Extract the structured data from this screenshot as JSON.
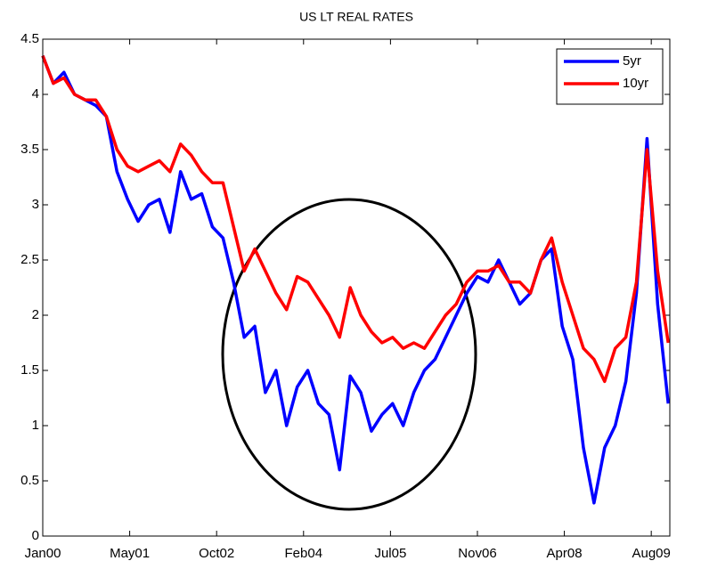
{
  "chart_data": {
    "type": "line",
    "title": "US LT REAL RATES",
    "x": [
      0,
      2,
      4,
      6,
      8,
      10,
      12,
      14,
      16,
      18,
      20,
      22,
      24,
      26,
      28,
      30,
      32,
      34,
      36,
      38,
      40,
      42,
      44,
      46,
      48,
      50,
      52,
      54,
      56,
      58,
      60,
      62,
      64,
      66,
      68,
      70,
      72,
      74,
      76,
      78,
      80,
      82,
      84,
      86,
      88,
      90,
      92,
      94,
      96,
      98,
      100,
      102,
      104,
      106,
      108,
      110,
      112,
      114,
      116,
      118
    ],
    "series": [
      {
        "name": "5yr",
        "color": "#0000ff",
        "values": [
          4.35,
          4.1,
          4.2,
          4.0,
          3.95,
          3.9,
          3.8,
          3.3,
          3.05,
          2.85,
          3.0,
          3.05,
          2.75,
          3.3,
          3.05,
          3.1,
          2.8,
          2.7,
          2.3,
          1.8,
          1.9,
          1.3,
          1.5,
          1.0,
          1.35,
          1.5,
          1.2,
          1.1,
          0.6,
          1.45,
          1.3,
          0.95,
          1.1,
          1.2,
          1.0,
          1.3,
          1.5,
          1.6,
          1.8,
          2.0,
          2.2,
          2.35,
          2.3,
          2.5,
          2.3,
          2.1,
          2.2,
          2.5,
          2.6,
          1.9,
          1.6,
          0.8,
          0.3,
          0.8,
          1.0,
          1.4,
          2.2,
          3.6,
          2.1,
          1.2
        ]
      },
      {
        "name": "10yr",
        "color": "#ff0000",
        "values": [
          4.35,
          4.1,
          4.15,
          4.0,
          3.95,
          3.95,
          3.8,
          3.5,
          3.35,
          3.3,
          3.35,
          3.4,
          3.3,
          3.55,
          3.45,
          3.3,
          3.2,
          3.2,
          2.8,
          2.4,
          2.6,
          2.4,
          2.2,
          2.05,
          2.35,
          2.3,
          2.15,
          2.0,
          1.8,
          2.25,
          2.0,
          1.85,
          1.75,
          1.8,
          1.7,
          1.75,
          1.7,
          1.85,
          2.0,
          2.1,
          2.3,
          2.4,
          2.4,
          2.45,
          2.3,
          2.3,
          2.2,
          2.5,
          2.7,
          2.3,
          2.0,
          1.7,
          1.6,
          1.4,
          1.7,
          1.8,
          2.3,
          3.5,
          2.4,
          1.75
        ]
      }
    ],
    "xlim": [
      0,
      118.3
    ],
    "xticks": [
      {
        "value": 0,
        "label": "Jan00"
      },
      {
        "value": 16.4,
        "label": "May01"
      },
      {
        "value": 32.8,
        "label": "Oct02"
      },
      {
        "value": 49.2,
        "label": "Feb04"
      },
      {
        "value": 65.6,
        "label": "Jul05"
      },
      {
        "value": 82,
        "label": "Nov06"
      },
      {
        "value": 98.4,
        "label": "Apr08"
      },
      {
        "value": 114.8,
        "label": "Aug09"
      }
    ],
    "ylim": [
      0,
      4.5
    ],
    "yticks": [
      0,
      0.5,
      1,
      1.5,
      2,
      2.5,
      3,
      3.5,
      4,
      4.5
    ],
    "grid": false,
    "legend": "northeast"
  }
}
